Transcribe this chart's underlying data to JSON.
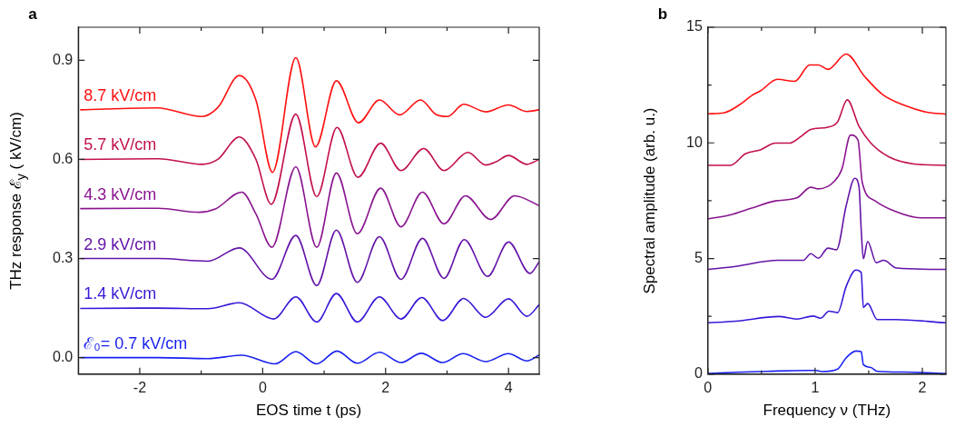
{
  "chart_data": [
    {
      "type": "line",
      "title": "a",
      "xlabel": "EOS time t (ps)",
      "ylabel": "THz response ℰ$_{y}$ ( kV/cm)",
      "xlim": [
        -3,
        4.5
      ],
      "ylim": [
        -0.05,
        1.0
      ],
      "xticks": [
        {
          "value": -2,
          "label": "-2"
        },
        {
          "value": -1,
          "label": null
        },
        0,
        {
          "value": 1,
          "label": null
        },
        2,
        {
          "value": 3,
          "label": null
        },
        4
      ],
      "yticks": [
        {
          "value": 0,
          "label": "0.0"
        },
        0.3,
        0.6,
        0.9
      ],
      "series": [
        {
          "name": "8.7 kV/cm",
          "color": "#ff1010",
          "x": [
            -2.96,
            -1.72,
            -0.99,
            -0.73,
            -0.38,
            -0.11,
            0.16,
            0.54,
            0.86,
            1.2,
            1.56,
            1.9,
            2.23,
            2.57,
            2.82,
            3.01,
            3.27,
            3.63,
            4.0,
            4.3,
            4.5
          ],
          "values": [
            0.75,
            0.756,
            0.73,
            0.757,
            0.854,
            0.78,
            0.561,
            0.908,
            0.638,
            0.838,
            0.711,
            0.78,
            0.735,
            0.78,
            0.736,
            0.73,
            0.767,
            0.744,
            0.765,
            0.745,
            0.75
          ]
        },
        {
          "name": "5.7 kV/cm",
          "color": "#c2104e",
          "x": [
            -2.96,
            -1.7,
            -0.99,
            -0.73,
            -0.38,
            -0.11,
            0.14,
            0.54,
            0.88,
            1.21,
            1.55,
            1.92,
            2.25,
            2.62,
            2.95,
            3.34,
            3.63,
            3.79,
            4.0,
            4.3,
            4.5
          ],
          "values": [
            0.6,
            0.602,
            0.585,
            0.6,
            0.668,
            0.6,
            0.464,
            0.737,
            0.487,
            0.697,
            0.546,
            0.649,
            0.566,
            0.633,
            0.566,
            0.621,
            0.583,
            0.592,
            0.612,
            0.585,
            0.6
          ]
        },
        {
          "name": "4.3 kV/cm",
          "color": "#8a1590",
          "x": [
            -2.96,
            -1.7,
            -1.03,
            -0.77,
            -0.34,
            -0.11,
            0.15,
            0.54,
            0.88,
            1.2,
            1.54,
            1.92,
            2.25,
            2.6,
            2.95,
            3.3,
            3.71,
            4.1,
            4.5
          ],
          "values": [
            0.451,
            0.452,
            0.44,
            0.45,
            0.501,
            0.435,
            0.334,
            0.578,
            0.334,
            0.559,
            0.375,
            0.513,
            0.396,
            0.501,
            0.405,
            0.49,
            0.418,
            0.49,
            0.46
          ]
        },
        {
          "name": "2.9 kV/cm",
          "color": "#6414a8",
          "x": [
            -2.96,
            -1.7,
            -0.89,
            -0.38,
            0.15,
            0.54,
            0.88,
            1.2,
            1.54,
            1.9,
            2.25,
            2.6,
            2.95,
            3.28,
            3.66,
            4.0,
            4.35,
            4.5
          ],
          "values": [
            0.3,
            0.3,
            0.292,
            0.332,
            0.237,
            0.37,
            0.218,
            0.386,
            0.228,
            0.366,
            0.237,
            0.361,
            0.24,
            0.357,
            0.246,
            0.35,
            0.255,
            0.29
          ]
        },
        {
          "name": "1.4 kV/cm",
          "color": "#3a18d8",
          "x": [
            -2.96,
            -1.7,
            -0.89,
            -0.38,
            0.18,
            0.54,
            0.88,
            1.2,
            1.54,
            1.9,
            2.25,
            2.59,
            2.93,
            3.27,
            3.63,
            4.0,
            4.3,
            4.5
          ],
          "values": [
            0.149,
            0.15,
            0.148,
            0.166,
            0.117,
            0.184,
            0.108,
            0.194,
            0.108,
            0.184,
            0.117,
            0.182,
            0.112,
            0.179,
            0.122,
            0.178,
            0.125,
            0.16
          ]
        },
        {
          "name": "ℰ₀= 0.7 kV/cm",
          "color": "#1a22f0",
          "x": [
            -2.96,
            -1.7,
            -0.89,
            -0.34,
            0.2,
            0.54,
            0.88,
            1.21,
            1.54,
            1.9,
            2.25,
            2.58,
            2.93,
            3.26,
            3.63,
            4.0,
            4.3,
            4.5
          ],
          "values": [
            0,
            0,
            -0.003,
            0.007,
            -0.019,
            0.018,
            -0.019,
            0.02,
            -0.017,
            0.016,
            -0.015,
            0.013,
            -0.015,
            0.012,
            -0.012,
            0.012,
            -0.01,
            0.008
          ]
        }
      ]
    },
    {
      "type": "line",
      "title": "b",
      "xlabel": "Frequency ν (THz)",
      "ylabel": "Spectral amplitude (arb. u.)",
      "xlim": [
        0,
        2.22
      ],
      "ylim": [
        0,
        15
      ],
      "xticks": [
        0,
        {
          "value": 0.5,
          "label": null
        },
        1,
        {
          "value": 1.5,
          "label": null
        },
        2
      ],
      "yticks": [
        0,
        {
          "value": 2.5,
          "label": null
        },
        5,
        {
          "value": 7.5,
          "label": null
        },
        10,
        {
          "value": 12.5,
          "label": null
        },
        15
      ],
      "series": [
        {
          "color": "#ff1010",
          "x": [
            0.006,
            0.15,
            0.29,
            0.41,
            0.49,
            0.65,
            0.81,
            0.95,
            1.03,
            1.12,
            1.29,
            1.46,
            1.63,
            1.83,
            2.03,
            2.22
          ],
          "values": [
            11.26,
            11.3,
            11.63,
            12.05,
            12.25,
            12.75,
            12.66,
            13.37,
            13.37,
            13.18,
            13.84,
            12.88,
            12.09,
            11.63,
            11.34,
            11.24
          ]
        },
        {
          "color": "#c2104e",
          "x": [
            0.006,
            0.21,
            0.35,
            0.49,
            0.63,
            0.76,
            0.86,
            0.96,
            1.12,
            1.21,
            1.3,
            1.41,
            1.52,
            1.69,
            1.92,
            2.22
          ],
          "values": [
            9.03,
            9.03,
            9.53,
            9.7,
            9.99,
            9.99,
            10.25,
            10.58,
            10.68,
            10.91,
            11.86,
            10.71,
            9.99,
            9.39,
            9.09,
            9.03
          ]
        },
        {
          "color": "#8a1590",
          "x": [
            0.006,
            0.21,
            0.41,
            0.63,
            0.83,
            0.96,
            1.03,
            1.18,
            1.25,
            1.33,
            1.4,
            1.44,
            1.56,
            1.75,
            1.98,
            2.22
          ],
          "values": [
            6.72,
            6.89,
            7.18,
            7.49,
            7.62,
            8.08,
            8.01,
            8.34,
            8.87,
            10.34,
            10.12,
            8.28,
            7.49,
            7.03,
            6.76,
            6.76
          ]
        },
        {
          "color": "#6414a8",
          "x": [
            0.006,
            0.26,
            0.65,
            0.89,
            0.96,
            1.03,
            1.12,
            1.2,
            1.29,
            1.37,
            1.41,
            1.43,
            1.45,
            1.49,
            1.57,
            1.64,
            1.76,
            2.22
          ],
          "values": [
            4.53,
            4.66,
            4.92,
            4.92,
            5.21,
            5.01,
            5.45,
            5.38,
            7.29,
            8.47,
            8.08,
            6.24,
            4.99,
            5.74,
            4.82,
            4.92,
            4.59,
            4.53
          ]
        },
        {
          "color": "#3a18d8",
          "x": [
            0.006,
            0.26,
            0.66,
            0.83,
            0.98,
            1.05,
            1.13,
            1.21,
            1.29,
            1.38,
            1.43,
            1.45,
            1.49,
            1.58,
            1.75,
            2.22
          ],
          "values": [
            2.22,
            2.29,
            2.49,
            2.38,
            2.51,
            2.42,
            2.72,
            2.66,
            3.8,
            4.5,
            4.39,
            2.88,
            3.05,
            2.36,
            2.36,
            2.22
          ]
        },
        {
          "color": "#1a22f0",
          "x": [
            0.006,
            0.26,
            0.55,
            0.92,
            1.01,
            1.06,
            1.21,
            1.29,
            1.38,
            1.43,
            1.45,
            1.52,
            1.58,
            1.83,
            2.22
          ],
          "values": [
            0.03,
            0.08,
            0.12,
            0.16,
            0.16,
            0.11,
            0.22,
            0.71,
            1.0,
            0.97,
            0.41,
            0.29,
            0.12,
            0.09,
            0.03
          ]
        }
      ]
    }
  ]
}
